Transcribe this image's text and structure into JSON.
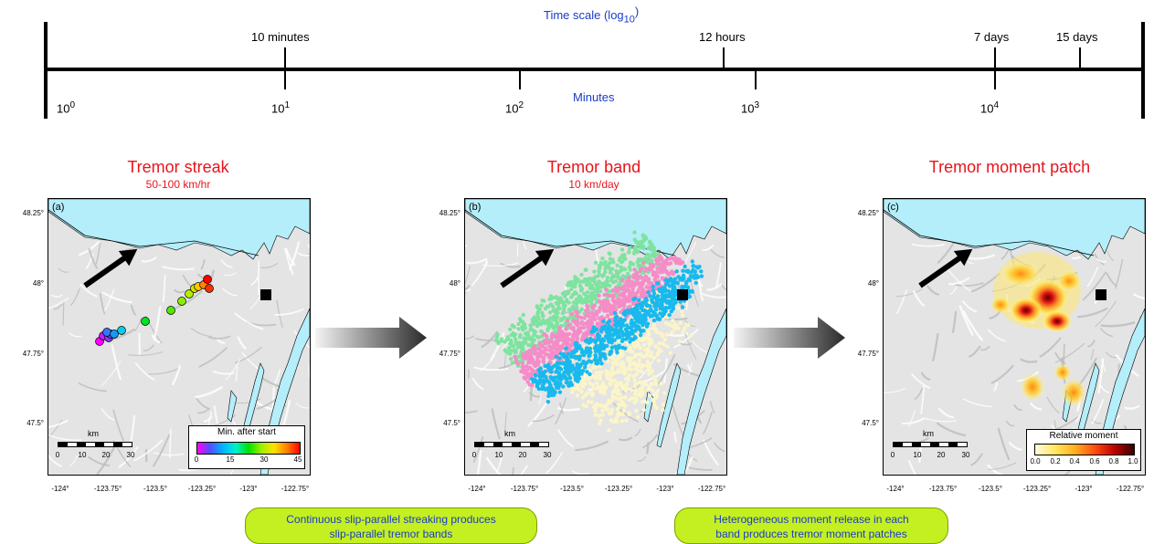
{
  "timeline": {
    "top_title": "Time scale (log",
    "top_title_sub": "10",
    "top_title_close": ")",
    "bottom_title": "Minutes",
    "events": [
      {
        "label": "10 minutes",
        "minutes": 10
      },
      {
        "label": "12 hours",
        "minutes": 720
      },
      {
        "label": "7 days",
        "minutes": 10080
      },
      {
        "label": "15 days",
        "minutes": 21600
      }
    ],
    "decades": [
      {
        "base": "10",
        "exp": "0"
      },
      {
        "base": "10",
        "exp": "1"
      },
      {
        "base": "10",
        "exp": "2"
      },
      {
        "base": "10",
        "exp": "3"
      },
      {
        "base": "10",
        "exp": "4"
      }
    ]
  },
  "panels": [
    {
      "title": "Tremor streak",
      "subtitle": "50-100 km/hr",
      "letter": "(a)",
      "legend_title": "Min. after start",
      "legend_ticks": [
        "0",
        "15",
        "30",
        "45"
      ]
    },
    {
      "title": "Tremor band",
      "subtitle": "10 km/day",
      "letter": "(b)"
    },
    {
      "title": "Tremor moment patch",
      "subtitle": "",
      "letter": "(c)",
      "legend_title": "Relative moment",
      "legend_ticks": [
        "0.0",
        "0.2",
        "0.4",
        "0.6",
        "0.8",
        "1.0"
      ]
    }
  ],
  "map_axes": {
    "lat_ticks": [
      "48.25°",
      "48°",
      "47.75°",
      "47.5°"
    ],
    "lon_ticks": [
      "-124°",
      "-123.75°",
      "-123.5°",
      "-123.25°",
      "-123°",
      "-122.75°"
    ]
  },
  "scalebar": {
    "unit": "km",
    "ticks": [
      "0",
      "10",
      "20",
      "30"
    ]
  },
  "captions": [
    {
      "line1": "Continuous slip-parallel streaking produces",
      "line2": "slip-parallel tremor bands"
    },
    {
      "line1": "Heterogeneous moment release in each",
      "line2": "band produces tremor moment patches"
    }
  ],
  "colors": {
    "water": "#b4eefa",
    "land": "#e4e4e4",
    "band_green": "#7fe3a0",
    "band_pink": "#f58cc8",
    "band_blue": "#19b9ee",
    "band_cream": "#fbf5c8",
    "title_red": "#e8141c",
    "caption_green": "#c4f021",
    "timeline_blue": "#1a3cc8"
  },
  "streak_points": [
    {
      "min": 0
    },
    {
      "min": 2
    },
    {
      "min": 4
    },
    {
      "min": 6
    },
    {
      "min": 8
    },
    {
      "min": 10
    },
    {
      "min": 14
    },
    {
      "min": 22
    },
    {
      "min": 26
    },
    {
      "min": 28
    },
    {
      "min": 30
    },
    {
      "min": 32
    },
    {
      "min": 36
    },
    {
      "min": 40
    },
    {
      "min": 44
    },
    {
      "min": 46
    }
  ]
}
